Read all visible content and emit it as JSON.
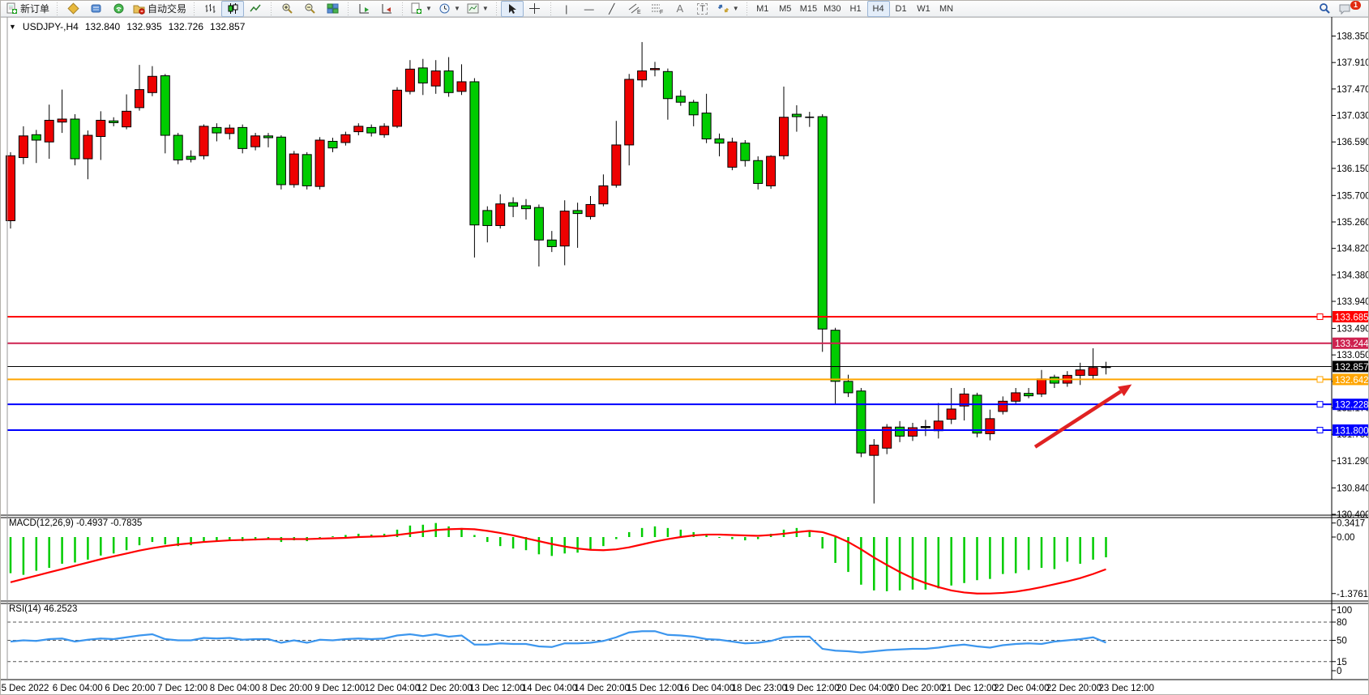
{
  "toolbar": {
    "new_order": "新订单",
    "autotrading": "自动交易",
    "timeframes": [
      "M1",
      "M5",
      "M15",
      "M30",
      "H1",
      "H4",
      "D1",
      "W1",
      "MN"
    ],
    "active_timeframe": "H4",
    "notification_count": "1",
    "icon_letters": {
      "channel": "E",
      "fibonacci": "F",
      "text": "A",
      "text_label": "T"
    }
  },
  "chart": {
    "symbol_period": "USDJPY-,H4",
    "open": "132.840",
    "high": "132.935",
    "low": "132.726",
    "close": "132.857"
  },
  "indicators": {
    "macd": {
      "title": "MACD(12,26,9)",
      "value_main": "-0.4937",
      "value_signal": "-0.7835",
      "axis_max": "0.3417",
      "axis_zero": "0.00",
      "axis_min": "-1.3761"
    },
    "rsi": {
      "title": "RSI(14)",
      "value": "46.2523",
      "levels_text": [
        "100",
        "80",
        "50",
        "15",
        "0"
      ]
    }
  },
  "chart_data": {
    "type": "candlestick",
    "title": "USDJPY-,H4 132.840 132.935 132.726 132.857",
    "colors": {
      "up": "#EE0000",
      "down": "#00CC00",
      "flat": "#000000",
      "macd_hist": "#00CC00",
      "macd_signal": "#FF0000",
      "rsi_line": "#3C96EE"
    },
    "price_axis": {
      "ticks": [
        138.35,
        137.91,
        137.47,
        137.03,
        136.59,
        136.15,
        135.7,
        135.26,
        134.82,
        134.38,
        133.94,
        133.49,
        133.05,
        132.61,
        132.17,
        131.73,
        131.29,
        130.84,
        130.4
      ],
      "visible_range": [
        130.36,
        138.67
      ]
    },
    "time_axis": {
      "labels": [
        "5 Dec 2022",
        "6 Dec 04:00",
        "6 Dec 20:00",
        "7 Dec 12:00",
        "8 Dec 04:00",
        "8 Dec 20:00",
        "9 Dec 12:00",
        "12 Dec 04:00",
        "12 Dec 20:00",
        "13 Dec 12:00",
        "14 Dec 04:00",
        "14 Dec 20:00",
        "15 Dec 12:00",
        "16 Dec 04:00",
        "18 Dec 23:00",
        "19 Dec 12:00",
        "20 Dec 04:00",
        "20 Dec 20:00",
        "21 Dec 12:00",
        "22 Dec 04:00",
        "22 Dec 20:00",
        "23 Dec 12:00"
      ]
    },
    "candles_ohlc": [
      [
        135.28,
        136.42,
        135.15,
        136.36
      ],
      [
        136.33,
        136.85,
        136.22,
        136.69
      ],
      [
        136.71,
        136.79,
        136.24,
        136.62
      ],
      [
        136.59,
        137.21,
        136.31,
        136.95
      ],
      [
        136.92,
        137.46,
        136.74,
        136.97
      ],
      [
        136.97,
        137.05,
        136.2,
        136.31
      ],
      [
        136.31,
        136.78,
        135.97,
        136.7
      ],
      [
        136.68,
        137.1,
        136.29,
        136.95
      ],
      [
        136.94,
        137.0,
        136.85,
        136.91
      ],
      [
        136.84,
        137.38,
        136.8,
        137.1
      ],
      [
        137.16,
        137.87,
        137.11,
        137.46
      ],
      [
        137.41,
        137.85,
        137.35,
        137.68
      ],
      [
        137.69,
        137.72,
        136.4,
        136.7
      ],
      [
        136.7,
        136.74,
        136.22,
        136.29
      ],
      [
        136.35,
        136.45,
        136.25,
        136.3
      ],
      [
        136.36,
        136.88,
        136.3,
        136.85
      ],
      [
        136.83,
        136.9,
        136.6,
        136.74
      ],
      [
        136.73,
        136.88,
        136.63,
        136.82
      ],
      [
        136.83,
        136.88,
        136.4,
        136.48
      ],
      [
        136.51,
        136.74,
        136.45,
        136.69
      ],
      [
        136.69,
        136.74,
        136.5,
        136.66
      ],
      [
        136.67,
        136.7,
        135.8,
        135.88
      ],
      [
        135.88,
        136.44,
        135.83,
        136.39
      ],
      [
        136.38,
        136.42,
        135.8,
        135.86
      ],
      [
        135.85,
        136.67,
        135.8,
        136.62
      ],
      [
        136.6,
        136.66,
        136.42,
        136.49
      ],
      [
        136.58,
        136.76,
        136.53,
        136.71
      ],
      [
        136.76,
        136.9,
        136.7,
        136.85
      ],
      [
        136.83,
        136.88,
        136.68,
        136.74
      ],
      [
        136.71,
        136.9,
        136.66,
        136.85
      ],
      [
        136.85,
        137.5,
        136.82,
        137.45
      ],
      [
        137.43,
        137.95,
        137.38,
        137.8
      ],
      [
        137.82,
        137.97,
        137.37,
        137.57
      ],
      [
        137.52,
        137.95,
        137.39,
        137.77
      ],
      [
        137.77,
        138.0,
        137.34,
        137.41
      ],
      [
        137.43,
        137.88,
        137.37,
        137.59
      ],
      [
        137.59,
        137.65,
        134.67,
        135.21
      ],
      [
        135.45,
        135.52,
        134.92,
        135.2
      ],
      [
        135.2,
        135.72,
        135.15,
        135.56
      ],
      [
        135.58,
        135.67,
        135.34,
        135.52
      ],
      [
        135.53,
        135.64,
        135.3,
        135.48
      ],
      [
        135.5,
        135.55,
        134.52,
        134.96
      ],
      [
        134.96,
        135.11,
        134.76,
        134.85
      ],
      [
        134.86,
        135.62,
        134.54,
        135.44
      ],
      [
        135.45,
        135.58,
        134.83,
        135.4
      ],
      [
        135.35,
        135.69,
        135.3,
        135.55
      ],
      [
        135.56,
        136.05,
        135.52,
        135.86
      ],
      [
        135.87,
        136.94,
        135.83,
        136.54
      ],
      [
        136.54,
        137.72,
        136.2,
        137.63
      ],
      [
        137.62,
        138.25,
        137.5,
        137.77
      ],
      [
        137.79,
        137.92,
        137.68,
        137.81
      ],
      [
        137.76,
        137.81,
        136.96,
        137.31
      ],
      [
        137.35,
        137.45,
        137.19,
        137.25
      ],
      [
        137.25,
        137.29,
        136.85,
        137.04
      ],
      [
        137.07,
        137.39,
        136.57,
        136.64
      ],
      [
        136.64,
        136.73,
        136.35,
        136.57
      ],
      [
        136.17,
        136.66,
        136.12,
        136.59
      ],
      [
        136.57,
        136.62,
        136.18,
        136.28
      ],
      [
        136.28,
        136.35,
        135.8,
        135.9
      ],
      [
        135.86,
        136.37,
        135.81,
        136.35
      ],
      [
        136.36,
        137.51,
        136.3,
        137.0
      ],
      [
        137.05,
        137.2,
        136.76,
        137.01,
        "g"
      ],
      [
        137.0,
        137.09,
        136.84,
        137.0,
        "k"
      ],
      [
        137.01,
        137.05,
        133.1,
        133.48
      ],
      [
        133.46,
        133.5,
        132.23,
        132.61
      ],
      [
        132.61,
        132.72,
        132.35,
        132.42
      ],
      [
        132.45,
        132.5,
        131.35,
        131.42
      ],
      [
        131.38,
        131.65,
        130.58,
        131.55
      ],
      [
        131.5,
        131.9,
        131.4,
        131.85
      ],
      [
        131.85,
        131.95,
        131.6,
        131.7
      ],
      [
        131.7,
        131.92,
        131.62,
        131.84
      ],
      [
        131.84,
        131.97,
        131.7,
        131.86,
        "k"
      ],
      [
        131.79,
        132.25,
        131.66,
        131.95
      ],
      [
        131.98,
        132.5,
        131.9,
        132.15
      ],
      [
        132.2,
        132.5,
        131.96,
        132.4
      ],
      [
        132.38,
        132.42,
        131.68,
        131.75
      ],
      [
        131.74,
        132.14,
        131.63,
        131.99
      ],
      [
        132.11,
        132.36,
        132.06,
        132.28
      ],
      [
        132.28,
        132.5,
        132.24,
        132.42
      ],
      [
        132.41,
        132.5,
        132.33,
        132.37
      ],
      [
        132.4,
        132.8,
        132.35,
        132.65
      ],
      [
        132.68,
        132.72,
        132.5,
        132.58
      ],
      [
        132.58,
        132.78,
        132.52,
        132.71
      ],
      [
        132.71,
        132.92,
        132.55,
        132.8
      ],
      [
        132.71,
        133.16,
        132.64,
        132.84
      ],
      [
        132.84,
        132.935,
        132.726,
        132.857,
        "k"
      ]
    ],
    "hlines": [
      {
        "price": 133.685,
        "label": "133.685",
        "color": "#FF0000",
        "width": 2,
        "handle": true
      },
      {
        "price": 133.244,
        "label": "133.244",
        "color": "#CE2250",
        "width": 2,
        "handle": false
      },
      {
        "price": 132.857,
        "label": "132.857",
        "color": "#000000",
        "width": 1,
        "handle": false,
        "is_bid_line": true
      },
      {
        "price": 132.642,
        "label": "132.642",
        "color": "#FFA500",
        "width": 2,
        "handle": true
      },
      {
        "price": 132.228,
        "label": "132.228",
        "color": "#0000FF",
        "width": 2,
        "handle": true
      },
      {
        "price": 131.8,
        "label": "131.800",
        "color": "#0000FF",
        "width": 2,
        "handle": true
      }
    ],
    "macd": {
      "params": [
        12,
        26,
        9
      ],
      "histogram": [
        -0.88,
        -0.92,
        -0.82,
        -0.75,
        -0.65,
        -0.62,
        -0.55,
        -0.45,
        -0.4,
        -0.32,
        -0.2,
        -0.12,
        -0.18,
        -0.22,
        -0.2,
        -0.12,
        -0.1,
        -0.08,
        -0.1,
        -0.08,
        -0.06,
        -0.12,
        -0.08,
        -0.1,
        -0.04,
        0.02,
        0.05,
        0.08,
        0.06,
        0.08,
        0.18,
        0.28,
        0.3,
        0.3417,
        0.26,
        0.22,
        0.05,
        -0.12,
        -0.22,
        -0.28,
        -0.32,
        -0.42,
        -0.46,
        -0.4,
        -0.38,
        -0.32,
        -0.22,
        -0.05,
        0.12,
        0.22,
        0.26,
        0.22,
        0.18,
        0.12,
        0.05,
        -0.02,
        -0.05,
        -0.08,
        -0.05,
        0.08,
        0.18,
        0.22,
        0.15,
        -0.28,
        -0.63,
        -0.85,
        -1.16,
        -1.3,
        -1.32,
        -1.3,
        -1.28,
        -1.28,
        -1.25,
        -1.18,
        -1.12,
        -1.05,
        -1.02,
        -0.9,
        -0.88,
        -0.8,
        -0.75,
        -0.78,
        -0.6,
        -0.65,
        -0.55,
        -0.4937
      ],
      "signal": [
        -1.1,
        -1.02,
        -0.94,
        -0.86,
        -0.78,
        -0.7,
        -0.62,
        -0.54,
        -0.47,
        -0.4,
        -0.33,
        -0.27,
        -0.22,
        -0.18,
        -0.15,
        -0.12,
        -0.1,
        -0.08,
        -0.07,
        -0.06,
        -0.05,
        -0.05,
        -0.05,
        -0.05,
        -0.04,
        -0.03,
        -0.02,
        0.0,
        0.01,
        0.02,
        0.05,
        0.09,
        0.13,
        0.17,
        0.19,
        0.2,
        0.19,
        0.15,
        0.1,
        0.04,
        -0.03,
        -0.1,
        -0.17,
        -0.23,
        -0.28,
        -0.31,
        -0.32,
        -0.3,
        -0.25,
        -0.18,
        -0.11,
        -0.05,
        0.0,
        0.04,
        0.06,
        0.06,
        0.05,
        0.04,
        0.03,
        0.05,
        0.08,
        0.12,
        0.15,
        0.12,
        0.02,
        -0.12,
        -0.3,
        -0.5,
        -0.68,
        -0.85,
        -1.0,
        -1.12,
        -1.22,
        -1.3,
        -1.35,
        -1.3761,
        -1.375,
        -1.36,
        -1.33,
        -1.28,
        -1.22,
        -1.15,
        -1.08,
        -1.0,
        -0.9,
        -0.7835
      ],
      "axis": {
        "max": 0.3417,
        "zero": 0.0,
        "min": -1.3761
      }
    },
    "rsi": {
      "period": 14,
      "values": [
        48,
        50,
        49,
        52,
        53,
        48,
        51,
        53,
        52,
        55,
        58,
        60,
        52,
        50,
        50,
        54,
        53,
        54,
        51,
        52,
        52,
        46,
        50,
        46,
        51,
        50,
        52,
        53,
        52,
        53,
        58,
        60,
        57,
        60,
        56,
        58,
        43,
        43,
        45,
        44,
        44,
        40,
        39,
        45,
        45,
        46,
        49,
        55,
        63,
        65,
        65,
        59,
        58,
        56,
        52,
        51,
        48,
        45,
        46,
        49,
        55,
        56,
        56,
        36,
        33,
        32,
        30,
        32,
        34,
        35,
        36,
        36,
        38,
        41,
        43,
        40,
        38,
        42,
        44,
        45,
        44,
        48,
        50,
        52,
        55,
        46.25
      ],
      "levels": [
        80,
        50,
        15
      ],
      "axis_labels": [
        100,
        80,
        50,
        15,
        0
      ]
    },
    "annotations": [
      {
        "type": "arrow",
        "color": "#E02222",
        "from": {
          "index": 79.5,
          "price": 131.52
        },
        "to": {
          "index": 87.0,
          "price": 132.56
        }
      }
    ]
  }
}
